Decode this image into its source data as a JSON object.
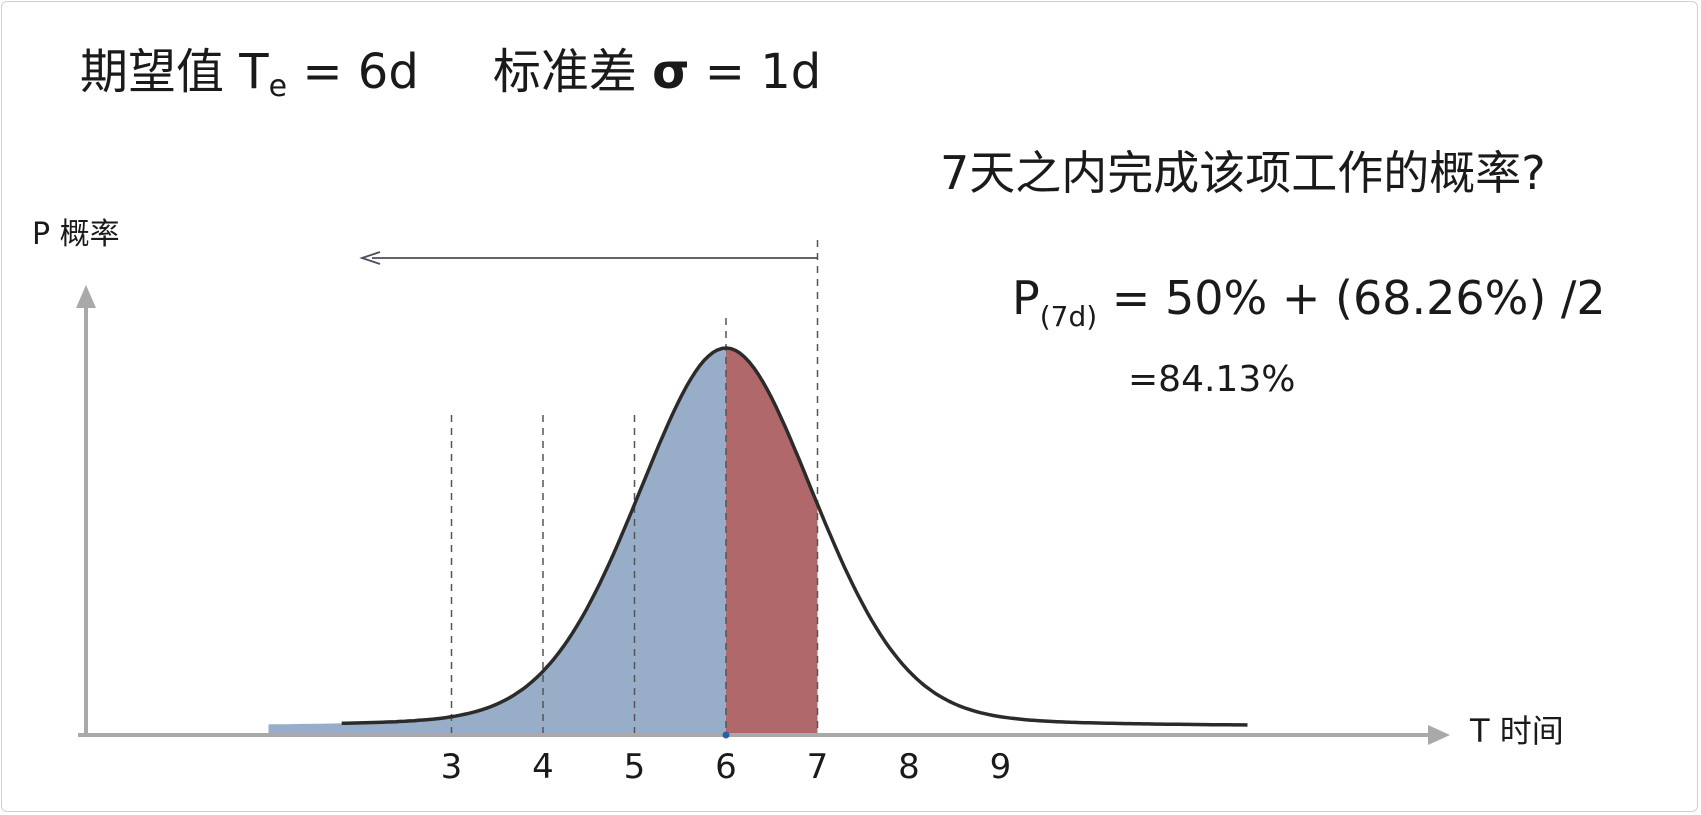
{
  "header": {
    "te_label": "期望值 T",
    "te_sub": "e",
    "te_value": " = 6d",
    "sd_label": "标准差 ",
    "sd_symbol": "σ",
    "sd_value": " = 1d"
  },
  "question": "7天之内完成该项工作的概率?",
  "formula": {
    "p": "P",
    "sub": "(7d)",
    "rest": " = 50% + (68.26%) /2"
  },
  "result": "=84.13%",
  "colors": {
    "below_mean": "#98aec8",
    "mean_to_7": "#b0686a",
    "curve": "#2b2b2b",
    "axis": "#a9a9a9",
    "dash": "#555555",
    "arrow": "#4a4f5a"
  },
  "chart_data": {
    "type": "area",
    "distribution": "normal",
    "mean": 6,
    "sd": 1,
    "xlabel": "T 时间",
    "ylabel": "P 概率",
    "xlim": [
      1.0,
      12.0
    ],
    "x_ticks": [
      "3",
      "4",
      "5",
      "6",
      "7",
      "8",
      "9"
    ],
    "x_tick_values": [
      3,
      4,
      5,
      6,
      7,
      8,
      9
    ],
    "dashed_lines": [
      3,
      4,
      5,
      6,
      7
    ],
    "shaded_regions": [
      {
        "from": 1.0,
        "to": 6,
        "color": "below_mean"
      },
      {
        "from": 6,
        "to": 7,
        "color": "mean_to_7"
      }
    ],
    "arrow": {
      "from": 7,
      "direction": "left"
    },
    "grid": false
  }
}
